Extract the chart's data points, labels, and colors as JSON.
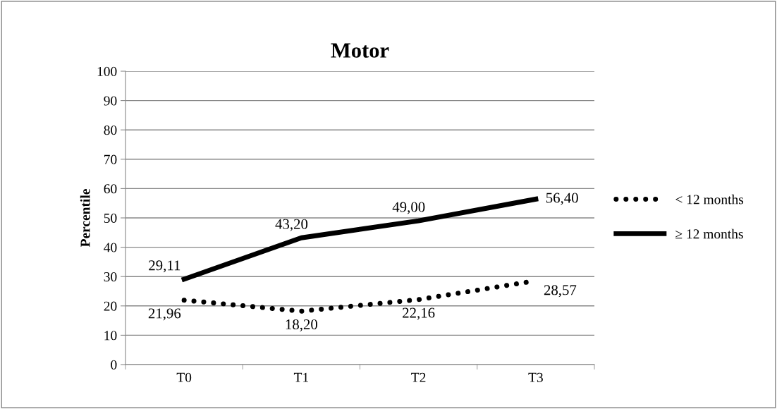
{
  "chart_data": {
    "type": "line",
    "title": "Motor",
    "ylabel": "Percentile",
    "categories": [
      "T0",
      "T1",
      "T2",
      "T3"
    ],
    "series": [
      {
        "name": "< 12 months",
        "color": "#000000",
        "line_style": "dotted",
        "values": [
          21.96,
          18.2,
          22.16,
          28.57
        ],
        "value_labels": [
          "21,96",
          "18,20",
          "22,16",
          "28,57"
        ]
      },
      {
        "name": "≥ 12 months",
        "color": "#000000",
        "line_style": "solid",
        "values": [
          29.11,
          43.2,
          49.0,
          56.4
        ],
        "value_labels": [
          "29,11",
          "43,20",
          "49,00",
          "56,40"
        ]
      }
    ],
    "ylim": [
      0,
      100
    ],
    "yticks": [
      0,
      10,
      20,
      30,
      40,
      50,
      60,
      70,
      80,
      90,
      100
    ],
    "grid": "y",
    "legend": "right",
    "marker": "none"
  }
}
